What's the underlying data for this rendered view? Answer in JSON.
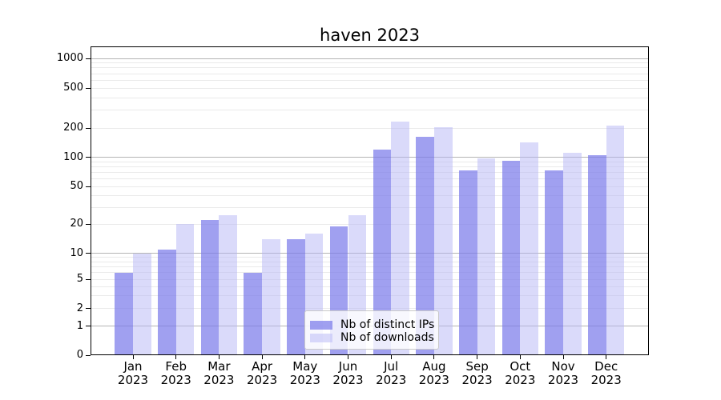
{
  "title": "haven 2023",
  "legend": {
    "items": [
      {
        "label": "Nb of distinct IPs",
        "swatch": "dark"
      },
      {
        "label": "Nb of downloads",
        "swatch": "light"
      }
    ]
  },
  "colors": {
    "bar_dark": "rgba(124,124,234,0.72)",
    "bar_light": "rgba(181,181,245,0.5)",
    "grid_major": "#b3b3b3",
    "grid_minor": "#eaeaea",
    "axis": "#000000"
  },
  "chart_data": {
    "type": "bar",
    "title": "haven 2023",
    "categories": [
      "Jan 2023",
      "Feb 2023",
      "Mar 2023",
      "Apr 2023",
      "May 2023",
      "Jun 2023",
      "Jul 2023",
      "Aug 2023",
      "Sep 2023",
      "Oct 2023",
      "Nov 2023",
      "Dec 2023"
    ],
    "series": [
      {
        "name": "Nb of distinct IPs",
        "values": [
          6,
          11,
          22,
          6,
          14,
          19,
          120,
          163,
          73,
          93,
          73,
          105
        ]
      },
      {
        "name": "Nb of downloads",
        "values": [
          10,
          20,
          25,
          14,
          16,
          25,
          230,
          203,
          98,
          142,
          112,
          210
        ]
      }
    ],
    "xlabel": "",
    "ylabel": "",
    "yscale": "symlog",
    "yticks": [
      0,
      1,
      2,
      5,
      10,
      20,
      50,
      100,
      200,
      500,
      1000
    ],
    "ylim": [
      0,
      1320
    ],
    "grid": true,
    "legend_position": "inside lower-center"
  }
}
